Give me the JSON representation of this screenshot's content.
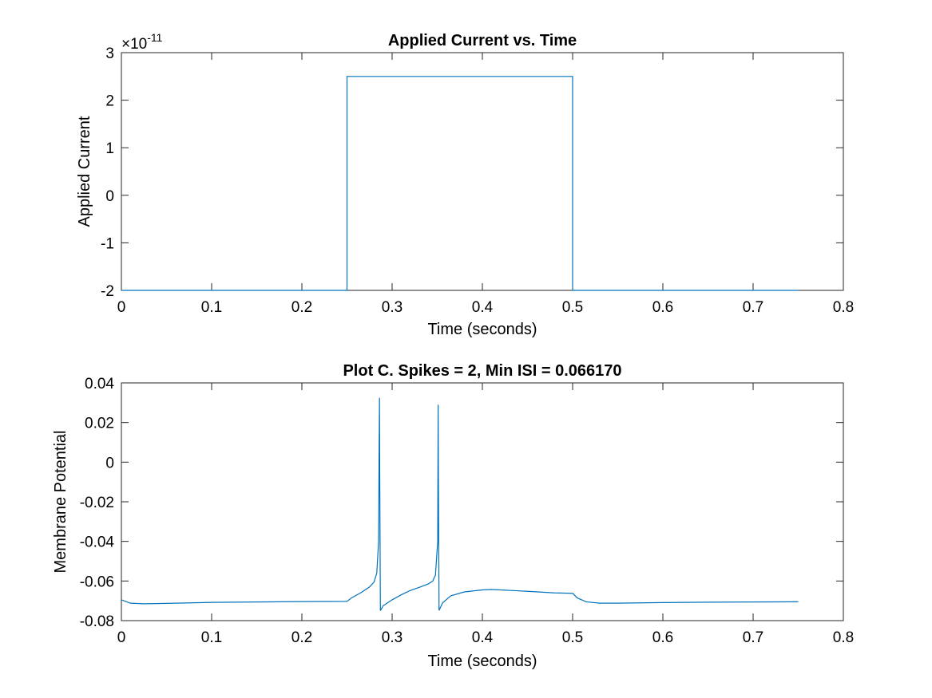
{
  "chart_data": [
    {
      "type": "line",
      "title": "Applied Current vs. Time",
      "xlabel": "Time (seconds)",
      "ylabel": "Applied Current",
      "exponent_label": "×10",
      "exponent_power": "-11",
      "xlim": [
        0,
        0.8
      ],
      "ylim": [
        -2,
        3
      ],
      "xticks": [
        "0",
        "0.1",
        "0.2",
        "0.3",
        "0.4",
        "0.5",
        "0.6",
        "0.7",
        "0.8"
      ],
      "yticks": [
        "-2",
        "-1",
        "0",
        "1",
        "2",
        "3"
      ],
      "line_color": "#0072BD",
      "series": [
        {
          "x": [
            0,
            0.25,
            0.25,
            0.5,
            0.5,
            0.75
          ],
          "y": [
            -2,
            -2,
            2.5,
            2.5,
            -2,
            -2
          ]
        }
      ]
    },
    {
      "type": "line",
      "title": "Plot C. Spikes = 2, Min ISI = 0.066170",
      "xlabel": "Time (seconds)",
      "ylabel": "Membrane Potential",
      "xlim": [
        0,
        0.8
      ],
      "ylim": [
        -0.08,
        0.04
      ],
      "xticks": [
        "0",
        "0.1",
        "0.2",
        "0.3",
        "0.4",
        "0.5",
        "0.6",
        "0.7",
        "0.8"
      ],
      "yticks": [
        "-0.08",
        "-0.06",
        "-0.04",
        "-0.02",
        "0",
        "0.02",
        "0.04"
      ],
      "line_color": "#0072BD",
      "series": [
        {
          "x": [
            0,
            0.01,
            0.025,
            0.05,
            0.1,
            0.15,
            0.2,
            0.25,
            0.255,
            0.265,
            0.275,
            0.28,
            0.283,
            0.285,
            0.2855,
            0.286,
            0.2862,
            0.287,
            0.29,
            0.3,
            0.31,
            0.32,
            0.33,
            0.34,
            0.345,
            0.348,
            0.3505,
            0.351,
            0.3512,
            0.352,
            0.356,
            0.365,
            0.38,
            0.4,
            0.41,
            0.42,
            0.45,
            0.48,
            0.5,
            0.505,
            0.515,
            0.53,
            0.55,
            0.6,
            0.65,
            0.7,
            0.75
          ],
          "y": [
            -0.0695,
            -0.0712,
            -0.0715,
            -0.0713,
            -0.0708,
            -0.0706,
            -0.0704,
            -0.0703,
            -0.0685,
            -0.066,
            -0.063,
            -0.0605,
            -0.056,
            -0.04,
            0.0,
            0.0325,
            0.0,
            -0.075,
            -0.0725,
            -0.0695,
            -0.067,
            -0.0648,
            -0.0632,
            -0.0615,
            -0.06,
            -0.057,
            -0.04,
            0.029,
            0.0,
            -0.0748,
            -0.071,
            -0.0675,
            -0.0655,
            -0.0645,
            -0.0643,
            -0.0645,
            -0.0652,
            -0.066,
            -0.0662,
            -0.0685,
            -0.0705,
            -0.0712,
            -0.0712,
            -0.0709,
            -0.0707,
            -0.0706,
            -0.0705
          ]
        }
      ]
    }
  ]
}
